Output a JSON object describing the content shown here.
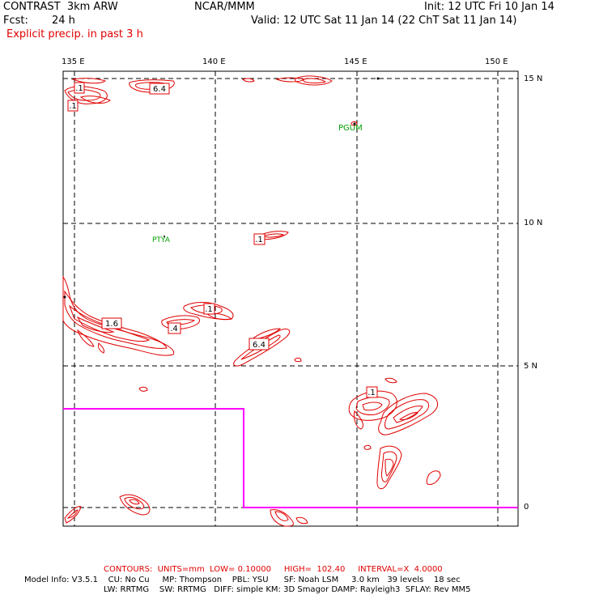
{
  "header": {
    "model": "CONTRAST  3km ARW",
    "center": "NCAR/MMM",
    "init": "Init: 12 UTC Fri 10 Jan 14",
    "fcst_label": "Fcst:",
    "fcst_value": "24 h",
    "valid": "Valid: 12 UTC Sat 11 Jan 14 (22 ChT Sat 11 Jan 14)",
    "field": "Explicit precip. in past 3 h"
  },
  "map": {
    "lon_labels": [
      "135 E",
      "140 E",
      "145 E",
      "150 E"
    ],
    "lat_labels": [
      "15 N",
      "10 N",
      "5 N",
      "0"
    ],
    "stations": [
      "PGUM",
      "PTYA"
    ],
    "contour_labels": [
      ".1",
      ".1",
      "6.4",
      ".1",
      "1.6",
      ".4",
      ".1",
      "6.4",
      ".1"
    ],
    "colors": {
      "contour": "#e00000",
      "grid": "#000000",
      "domain_box": "#ff00ff",
      "station": "#00a000"
    }
  },
  "footer": {
    "contours_line": "CONTOURS:  UNITS=mm  LOW= 0.10000     HIGH=  102.40     INTERVAL=X  4.0000",
    "model_info_1": "Model Info: V3.5.1    CU: No Cu     MP: Thompson    PBL: YSU      SF: Noah LSM     3.0 km   39 levels    18 sec",
    "model_info_2": "LW: RRTMG    SW: RRTMG   DIFF: simple KM: 3D Smagor DAMP: Rayleigh3  SFLAY: Rev MM5"
  }
}
